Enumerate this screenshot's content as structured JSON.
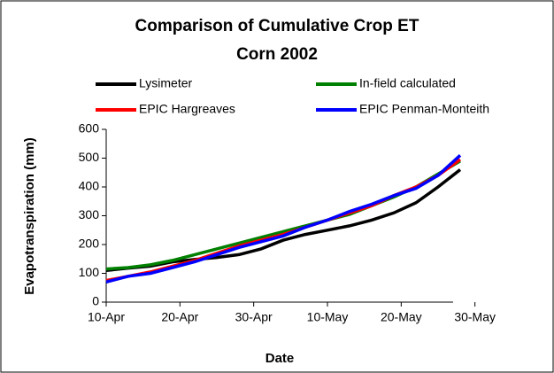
{
  "chart_data": {
    "type": "line",
    "title": "Comparison of Cumulative Crop ET",
    "subtitle": "Corn 2002",
    "x_label": "Date",
    "y_label": "Evapotranspiration (mm)",
    "x": [
      "10-Apr",
      "13-Apr",
      "16-Apr",
      "19-Apr",
      "22-Apr",
      "25-Apr",
      "28-Apr",
      "1-May",
      "4-May",
      "7-May",
      "10-May",
      "13-May",
      "16-May",
      "19-May",
      "22-May",
      "25-May",
      "28-May"
    ],
    "series": [
      {
        "name": "Lysimeter",
        "color": "#000000",
        "values": [
          110,
          118,
          125,
          140,
          148,
          155,
          165,
          185,
          215,
          235,
          250,
          265,
          285,
          310,
          345,
          400,
          460
        ]
      },
      {
        "name": "In-field calculated",
        "color": "#008000",
        "values": [
          115,
          120,
          130,
          145,
          165,
          185,
          205,
          225,
          245,
          265,
          285,
          305,
          335,
          365,
          400,
          445,
          490
        ]
      },
      {
        "name": "EPIC Hargreaves",
        "color": "#ff0000",
        "values": [
          75,
          90,
          105,
          125,
          145,
          170,
          195,
          215,
          235,
          260,
          285,
          310,
          335,
          370,
          400,
          440,
          495
        ]
      },
      {
        "name": "EPIC Penman-Monteith",
        "color": "#0000ff",
        "values": [
          70,
          90,
          100,
          120,
          140,
          165,
          190,
          210,
          230,
          260,
          285,
          315,
          340,
          370,
          395,
          440,
          510
        ]
      }
    ],
    "xlim": [
      "10-Apr",
      "28-May"
    ],
    "xticks": [
      "10-Apr",
      "20-Apr",
      "30-Apr",
      "10-May",
      "20-May",
      "30-May"
    ],
    "ylim": [
      0,
      600
    ],
    "yticks": [
      0,
      100,
      200,
      300,
      400,
      500,
      600
    ]
  }
}
